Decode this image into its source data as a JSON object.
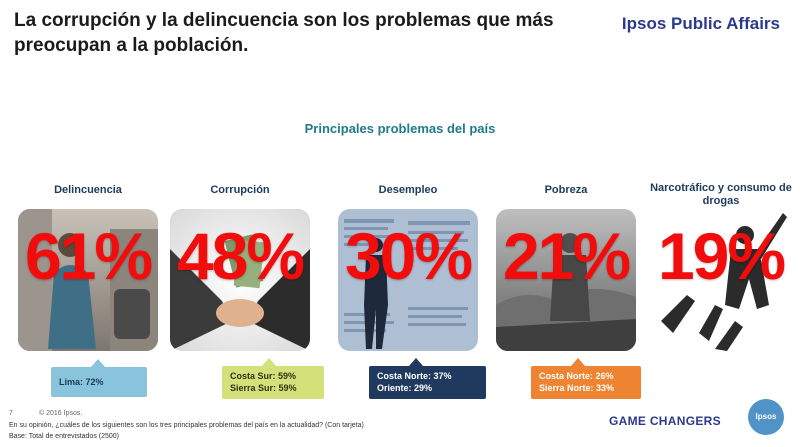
{
  "header": {
    "title": "La corrupción y la delincuencia son los problemas que más preocupan a la población.",
    "brand": "Ipsos Public Affairs"
  },
  "subtitle": "Principales problemas del país",
  "cards": [
    {
      "label": "Delincuencia",
      "percent": "61%",
      "value": 61
    },
    {
      "label": "Corrupción",
      "percent": "48%",
      "value": 48
    },
    {
      "label": "Desempleo",
      "percent": "30%",
      "value": 30
    },
    {
      "label": "Pobreza",
      "percent": "21%",
      "value": 21
    },
    {
      "label": "Narcotráfico y consumo de drogas",
      "percent": "19%",
      "value": 19
    }
  ],
  "callouts": {
    "delincuencia": [
      "Lima: 72%"
    ],
    "corrupcion": [
      "Costa Sur: 59%",
      "Sierra Sur: 59%"
    ],
    "desempleo": [
      "Costa Norte: 37%",
      "Oriente: 29%"
    ],
    "pobreza": [
      "Costa Norte: 26%",
      "Sierra Norte: 33%"
    ]
  },
  "footer": {
    "page_number": "7",
    "copyright": "© 2016 Ipsos.",
    "question": "En su opinión, ¿cuáles de los siguientes son los tres principales problemas del país en la actualidad? (Con tarjeta)",
    "base": "Base: Total de entrevistados (2500)",
    "tagline": "GAME CHANGERS",
    "logo_text": "Ipsos"
  },
  "colors": {
    "percent_red": "#f20c0c",
    "brand_blue": "#2d3a8c",
    "subtitle_teal": "#1f7a8c",
    "callout_lima": "#8ac4dc",
    "callout_corrupcion": "#d4e07a",
    "callout_desempleo": "#1f3a5e",
    "callout_pobreza": "#ee8432"
  }
}
